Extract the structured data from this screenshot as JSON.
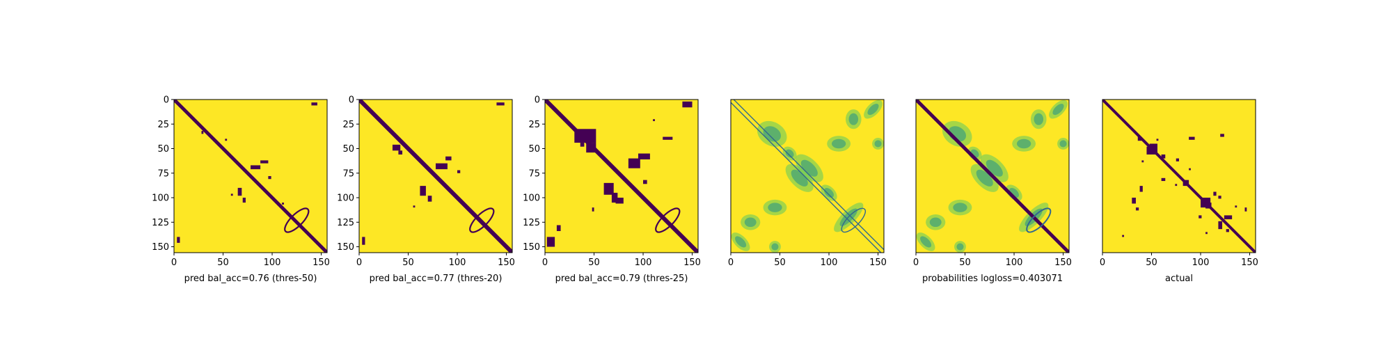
{
  "colors": {
    "low": "#440154",
    "mid_low": "#31688e",
    "mid": "#21918c",
    "mid_high": "#5ec962",
    "high": "#fde725"
  },
  "chart_data": [
    {
      "type": "heatmap",
      "title": "",
      "xlabel": "pred bal_acc=0.76 (thres-50)",
      "ylabel": "",
      "xlim": [
        0,
        156
      ],
      "ylim": [
        156,
        0
      ],
      "xticks": [
        "0",
        "50",
        "100",
        "150"
      ],
      "yticks": [
        "0",
        "25",
        "50",
        "75",
        "100",
        "125",
        "150"
      ],
      "colormap": "viridis",
      "values_binary": true,
      "features": {
        "main_diagonal": {
          "from": 0,
          "to": 156,
          "value": 0
        },
        "helices": [],
        "loops": [
          {
            "center": [
              125,
              122
            ],
            "length": 30,
            "value": 0
          }
        ],
        "off_diagonal_patches": [
          [
            70,
            95,
            0
          ],
          [
            110,
            88,
            0
          ],
          [
            145,
            12,
            0
          ],
          [
            12,
            145,
            0
          ]
        ]
      }
    },
    {
      "type": "heatmap",
      "title": "",
      "xlabel": "pred bal_acc=0.77 (thres-20)",
      "ylabel": "",
      "xlim": [
        0,
        156
      ],
      "ylim": [
        156,
        0
      ],
      "xticks": [
        "0",
        "50",
        "100",
        "150"
      ],
      "yticks": [
        "0",
        "25",
        "50",
        "75",
        "100",
        "125",
        "150"
      ],
      "colormap": "viridis",
      "values_binary": true,
      "features": {
        "main_diagonal": {
          "from": 0,
          "to": 156,
          "value": 0
        },
        "loops": [
          {
            "center": [
              125,
              122
            ],
            "length": 30,
            "value": 0
          }
        ],
        "off_diagonal_patches": [
          [
            70,
            95,
            0
          ],
          [
            90,
            70,
            0
          ],
          [
            40,
            55,
            0
          ],
          [
            150,
            8,
            0
          ],
          [
            8,
            150,
            0
          ]
        ]
      }
    },
    {
      "type": "heatmap",
      "title": "",
      "xlabel": "pred bal_acc=0.79 (thres-25)",
      "ylabel": "",
      "xlim": [
        0,
        156
      ],
      "ylim": [
        156,
        0
      ],
      "xticks": [
        "0",
        "50",
        "100",
        "150"
      ],
      "yticks": [
        "0",
        "25",
        "50",
        "75",
        "100",
        "125",
        "150"
      ],
      "colormap": "viridis",
      "values_binary": true,
      "features": {
        "main_diagonal": {
          "from": 0,
          "to": 156,
          "value": 0
        },
        "loops": [
          {
            "center": [
              125,
              122
            ],
            "length": 30,
            "value": 0
          }
        ],
        "off_diagonal_patches": [
          [
            40,
            40,
            0
          ],
          [
            90,
            70,
            0
          ],
          [
            70,
            90,
            0
          ],
          [
            145,
            15,
            0
          ],
          [
            15,
            145,
            0
          ],
          [
            130,
            40,
            0
          ]
        ]
      }
    },
    {
      "type": "heatmap",
      "title": "",
      "xlabel": "",
      "ylabel": "",
      "xlim": [
        0,
        156
      ],
      "ylim": [
        156,
        0
      ],
      "xticks": [
        "0",
        "50",
        "100",
        "150"
      ],
      "yticks": [],
      "colormap": "viridis",
      "values_binary": false
    },
    {
      "type": "heatmap",
      "title": "",
      "xlabel": "probabilities logloss=0.403071",
      "ylabel": "",
      "xlim": [
        0,
        156
      ],
      "ylim": [
        156,
        0
      ],
      "xticks": [
        "0",
        "50",
        "100",
        "150"
      ],
      "yticks": [],
      "colormap": "viridis",
      "values_binary": false
    },
    {
      "type": "heatmap",
      "title": "",
      "xlabel": "actual",
      "ylabel": "",
      "xlim": [
        0,
        156
      ],
      "ylim": [
        156,
        0
      ],
      "xticks": [
        "0",
        "50",
        "100",
        "150"
      ],
      "yticks": [],
      "colormap": "viridis",
      "values_binary": true
    }
  ]
}
